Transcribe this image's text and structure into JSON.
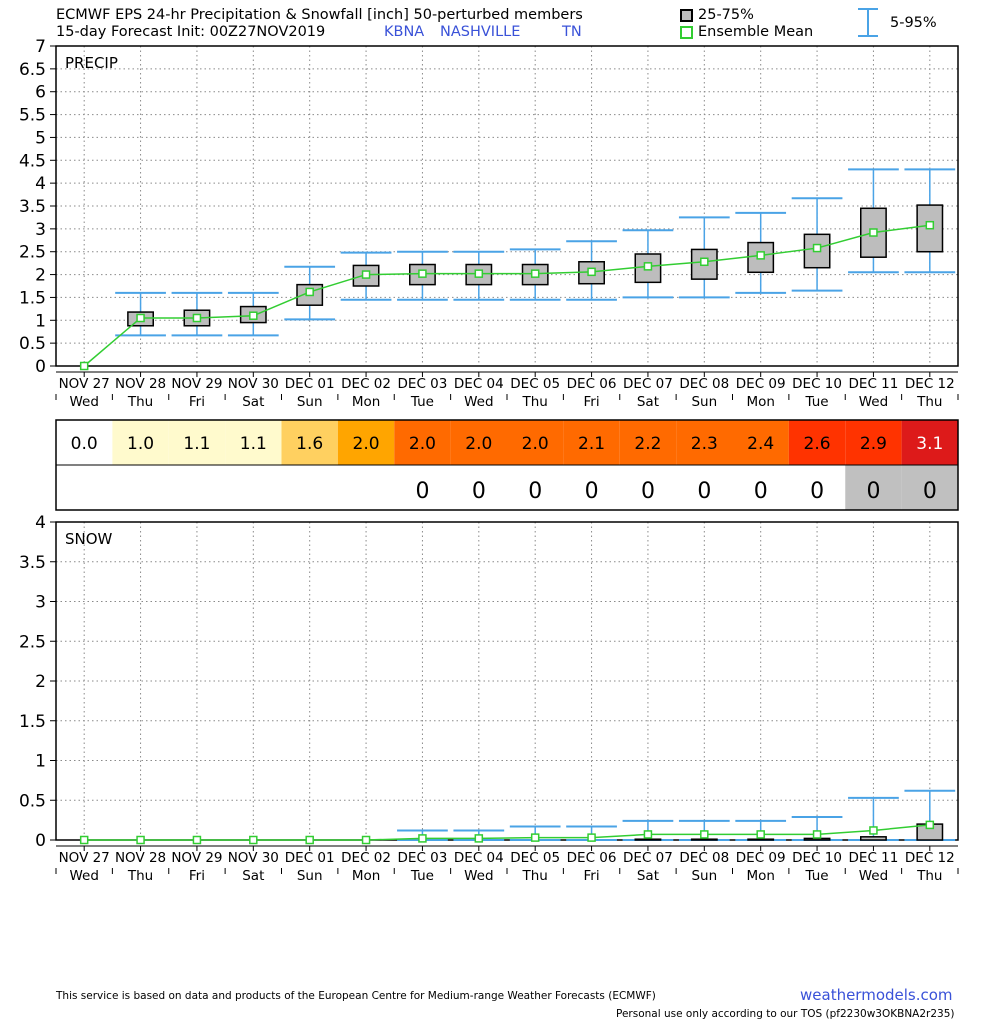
{
  "header": {
    "title_line1": "ECMWF EPS 24-hr Precipitation & Snowfall [inch]  50-perturbed members",
    "title_line2_prefix": "15-day Forecast Init: 00Z27NOV2019",
    "station_id": "KBNA",
    "station_name": "NASHVILLE",
    "station_state": "TN",
    "legend_box": "25-75%",
    "legend_mean": "Ensemble Mean",
    "legend_whisker": "5-95%"
  },
  "colors": {
    "mean_line": "#32cd32",
    "whisker": "#4aa3e6",
    "box_fill": "#bdbdbd",
    "title_blue": "#3a52d8"
  },
  "chart_data": [
    {
      "type": "box",
      "label": "PRECIP",
      "ylim": [
        0,
        7
      ],
      "yticks": [
        "0",
        "0.5",
        "1",
        "1.5",
        "2",
        "2.5",
        "3",
        "3.5",
        "4",
        "4.5",
        "5",
        "5.5",
        "6",
        "6.5",
        "7"
      ],
      "dates": [
        "NOV 27",
        "NOV 28",
        "NOV 29",
        "NOV 30",
        "DEC 01",
        "DEC 02",
        "DEC 03",
        "DEC 04",
        "DEC 05",
        "DEC 06",
        "DEC 07",
        "DEC 08",
        "DEC 09",
        "DEC 10",
        "DEC 11",
        "DEC 12"
      ],
      "days": [
        "Wed",
        "Thu",
        "Fri",
        "Sat",
        "Sun",
        "Mon",
        "Tue",
        "Wed",
        "Thu",
        "Fri",
        "Sat",
        "Sun",
        "Mon",
        "Tue",
        "Wed",
        "Thu"
      ],
      "mean": [
        0.0,
        1.05,
        1.05,
        1.1,
        1.62,
        2.0,
        2.02,
        2.02,
        2.02,
        2.06,
        2.18,
        2.28,
        2.42,
        2.58,
        2.92,
        3.08
      ],
      "q25": [
        null,
        0.88,
        0.88,
        0.95,
        1.33,
        1.75,
        1.78,
        1.78,
        1.78,
        1.8,
        1.83,
        1.9,
        2.05,
        2.15,
        2.38,
        2.5
      ],
      "q75": [
        null,
        1.18,
        1.22,
        1.3,
        1.78,
        2.2,
        2.22,
        2.22,
        2.22,
        2.28,
        2.45,
        2.55,
        2.7,
        2.88,
        3.45,
        3.52
      ],
      "p5": [
        null,
        0.67,
        0.67,
        0.67,
        1.02,
        1.45,
        1.45,
        1.45,
        1.45,
        1.45,
        1.5,
        1.5,
        1.6,
        1.65,
        2.05,
        2.05
      ],
      "p95": [
        null,
        1.6,
        1.6,
        1.6,
        2.17,
        2.48,
        2.5,
        2.5,
        2.55,
        2.73,
        2.97,
        3.25,
        3.35,
        3.67,
        4.3,
        4.3
      ]
    },
    {
      "type": "box",
      "label": "SNOW",
      "ylim": [
        0,
        4
      ],
      "yticks": [
        "0",
        "0.5",
        "1",
        "1.5",
        "2",
        "2.5",
        "3",
        "3.5",
        "4"
      ],
      "dates": [
        "NOV 27",
        "NOV 28",
        "NOV 29",
        "NOV 30",
        "DEC 01",
        "DEC 02",
        "DEC 03",
        "DEC 04",
        "DEC 05",
        "DEC 06",
        "DEC 07",
        "DEC 08",
        "DEC 09",
        "DEC 10",
        "DEC 11",
        "DEC 12"
      ],
      "days": [
        "Wed",
        "Thu",
        "Fri",
        "Sat",
        "Sun",
        "Mon",
        "Tue",
        "Wed",
        "Thu",
        "Fri",
        "Sat",
        "Sun",
        "Mon",
        "Tue",
        "Wed",
        "Thu"
      ],
      "mean": [
        0,
        0,
        0,
        0,
        0,
        0,
        0.02,
        0.02,
        0.03,
        0.03,
        0.07,
        0.07,
        0.07,
        0.07,
        0.12,
        0.19
      ],
      "q25": [
        0,
        0,
        0,
        0,
        0,
        0,
        0,
        0,
        0,
        0,
        0,
        0,
        0,
        0,
        0,
        0
      ],
      "q75": [
        0,
        0,
        0,
        0,
        0,
        0,
        0,
        0,
        0,
        0,
        0.01,
        0.01,
        0.01,
        0.02,
        0.04,
        0.2
      ],
      "p5": [
        null,
        null,
        null,
        null,
        null,
        null,
        0,
        0,
        0,
        0,
        0,
        0,
        0,
        0,
        0,
        0
      ],
      "p95": [
        null,
        null,
        null,
        null,
        null,
        null,
        0.12,
        0.12,
        0.17,
        0.17,
        0.24,
        0.24,
        0.24,
        0.29,
        0.53,
        0.62
      ]
    }
  ],
  "table": {
    "precip_values": [
      "0.0",
      "1.0",
      "1.1",
      "1.1",
      "1.6",
      "2.0",
      "2.0",
      "2.0",
      "2.0",
      "2.1",
      "2.2",
      "2.3",
      "2.4",
      "2.6",
      "2.9",
      "3.1"
    ],
    "precip_colors": [
      "#ffffff",
      "#fffacd",
      "#fffacd",
      "#fffacd",
      "#ffd060",
      "#ffa500",
      "#ff6a00",
      "#ff6a00",
      "#ff6a00",
      "#ff6a00",
      "#ff6a00",
      "#ff6a00",
      "#ff6a00",
      "#ff3300",
      "#ff3300",
      "#dd1a1a"
    ],
    "snow_values": [
      "",
      "",
      "",
      "",
      "",
      "",
      "0",
      "0",
      "0",
      "0",
      "0",
      "0",
      "0",
      "0",
      "0",
      "0"
    ],
    "snow_colors": [
      "#ffffff",
      "#ffffff",
      "#ffffff",
      "#ffffff",
      "#ffffff",
      "#ffffff",
      "#ffffff",
      "#ffffff",
      "#ffffff",
      "#ffffff",
      "#ffffff",
      "#ffffff",
      "#ffffff",
      "#ffffff",
      "#c0c0c0",
      "#c0c0c0"
    ]
  },
  "footer": {
    "disclaimer": "This service is based on data and products of the European Centre for Medium-range Weather Forecasts (ECMWF)",
    "site": "weathermodels.com",
    "tos": "Personal use only according to our TOS (pf2230w3OKBNA2r235)"
  }
}
